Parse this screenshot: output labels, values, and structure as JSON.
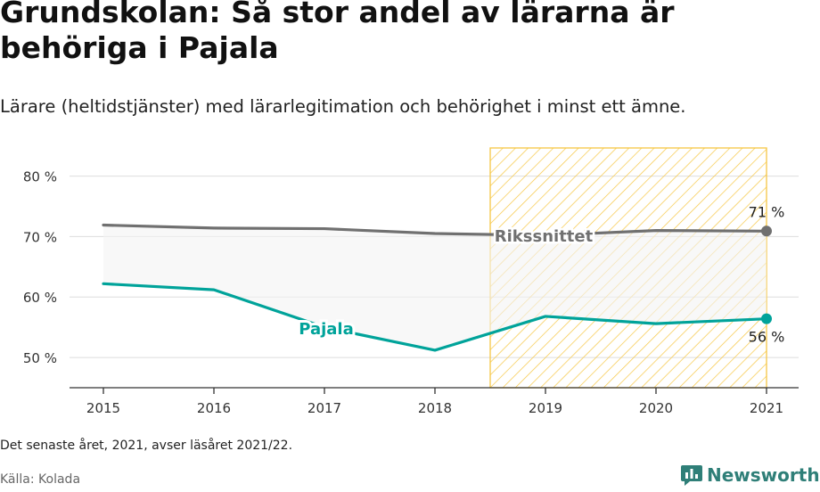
{
  "title": "Grundskolan: Så stor andel av lärarna är behöriga i Pajala",
  "subtitle": "Lärare (heltidstjänster) med lärarlegitimation och behörighet i minst ett ämne.",
  "note": "Det senaste året, 2021, avser läsåret 2021/22.",
  "source": "Källa: Kolada",
  "brand": {
    "name": "Newsworthy",
    "icon": "bar-chart-icon"
  },
  "colors": {
    "pajala": "#00a39a",
    "riket": "#707070",
    "highlight": "#f6c744",
    "fill": "#f3f3f3",
    "grid": "#dddddd",
    "brand": "#2f7f78"
  },
  "chart_data": {
    "type": "line",
    "x": [
      2015,
      2016,
      2017,
      2018,
      2019,
      2020,
      2021
    ],
    "tick_labels": [
      "2015",
      "2016",
      "2017",
      "2018",
      "2019",
      "2020",
      "2021"
    ],
    "ylim": [
      45,
      82
    ],
    "yticks": [
      50,
      60,
      70,
      80
    ],
    "ytick_labels": [
      "50 %",
      "60 %",
      "70 %",
      "80 %"
    ],
    "grid": true,
    "highlight_range": [
      2018.5,
      2021
    ],
    "series": [
      {
        "name": "Rikssnittet",
        "values": [
          71.9,
          71.4,
          71.3,
          70.5,
          70.2,
          71.0,
          70.9
        ],
        "end_label": "71 %"
      },
      {
        "name": "Pajala",
        "values": [
          62.2,
          61.2,
          55.0,
          51.2,
          56.8,
          55.6,
          56.4
        ],
        "end_label": "56 %"
      }
    ]
  }
}
